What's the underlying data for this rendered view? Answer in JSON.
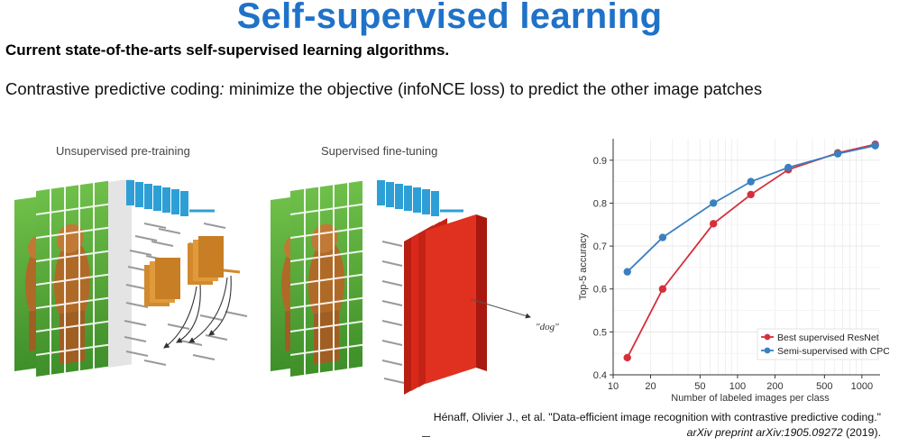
{
  "slide": {
    "title": "Self-supervised learning",
    "subtitle": "Current state-of-the-arts self-supervised learning algorithms.",
    "line_term": "Contrastive predictive coding",
    "line_colon": ":",
    "line_rest": " minimize the objective (infoNCE loss) to predict the other image patches"
  },
  "figure": {
    "left_caption": "Unsupervised pre-training",
    "right_caption": "Supervised fine-tuning",
    "output_label": "\"dog\""
  },
  "colors": {
    "title": "#1f72c8",
    "encoder": "#2e9fd6",
    "context": "#d18a2e",
    "classifier": "#d9281a",
    "series_resnet": "#d62f3b",
    "series_cpc": "#3a7fc0"
  },
  "chart_data": {
    "type": "line",
    "xlabel": "Number of labeled images per class",
    "ylabel": "Top-5 accuracy",
    "x_scale": "log",
    "xlim": [
      10,
      1400
    ],
    "ylim": [
      0.4,
      0.95
    ],
    "x_ticks": [
      10,
      20,
      50,
      100,
      200,
      500,
      1000
    ],
    "x_tick_labels": [
      "10",
      "20",
      "50",
      "100",
      "200",
      "500",
      "1000"
    ],
    "y_ticks": [
      0.4,
      0.5,
      0.6,
      0.7,
      0.8,
      0.9
    ],
    "y_tick_labels": [
      "0.4",
      "0.5",
      "0.6",
      "0.7",
      "0.8",
      "0.9"
    ],
    "grid": true,
    "legend_position": "bottom-right",
    "x": [
      13,
      25,
      64,
      128,
      256,
      640,
      1280
    ],
    "series": [
      {
        "name": "Best supervised ResNet",
        "color": "#d62f3b",
        "values": [
          0.44,
          0.6,
          0.752,
          0.82,
          0.878,
          0.917,
          0.937
        ]
      },
      {
        "name": "Semi-supervised with CPC",
        "color": "#3a7fc0",
        "values": [
          0.64,
          0.72,
          0.8,
          0.85,
          0.883,
          0.915,
          0.934
        ]
      }
    ]
  },
  "citation": {
    "line1": "Hénaff, Olivier J., et al. \"Data-efficient image recognition with contrastive predictive coding.\"",
    "journal": "arXiv preprint arXiv:1905.09272",
    "year": " (2019)."
  }
}
